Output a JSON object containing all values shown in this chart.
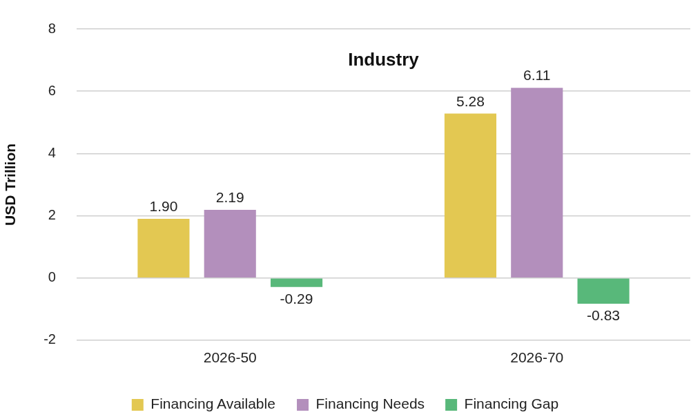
{
  "chart_data": {
    "type": "bar",
    "title": "Industry",
    "ylabel": "USD Trillion",
    "categories": [
      "2026-50",
      "2026-70"
    ],
    "series": [
      {
        "name": "Financing Available",
        "color": "#e3c852",
        "values": [
          1.9,
          5.28
        ],
        "value_labels": [
          "1.90",
          "5.28"
        ]
      },
      {
        "name": "Financing Needs",
        "color": "#b38fbc",
        "values": [
          2.19,
          6.11
        ],
        "value_labels": [
          "2.19",
          "6.11"
        ]
      },
      {
        "name": "Financing Gap",
        "color": "#58b87a",
        "values": [
          -0.29,
          -0.83
        ],
        "value_labels": [
          "-0.29",
          "-0.83"
        ]
      }
    ],
    "ylim": [
      -2,
      8
    ],
    "yticks": [
      -2,
      0,
      2,
      4,
      6,
      8
    ],
    "grid": "y",
    "legend": "bottom"
  }
}
